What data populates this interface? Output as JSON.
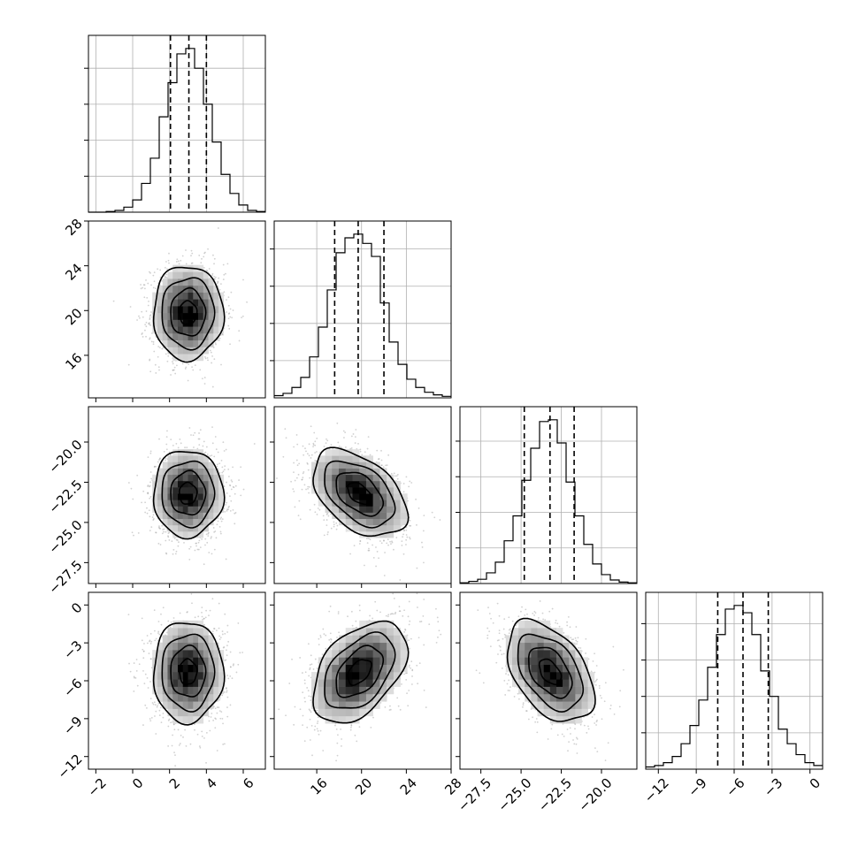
{
  "chart_data": {
    "type": "corner",
    "description_kind": "corner plot of 4 parameters: 1D marginal histograms on the diagonal with dashed quantile lines, 2D density histograms with contours and scatter points below the diagonal",
    "grid": true,
    "parameters": [
      {
        "id": "p1",
        "label": "",
        "range": [
          -2.4,
          7.2
        ],
        "ticks": [
          -2,
          0,
          2,
          4,
          6
        ],
        "tick_labels": [
          "−2",
          "0",
          "2",
          "4",
          "6"
        ],
        "mean": 3.0,
        "sd": 0.95,
        "quantiles_dashed": [
          2.05,
          3.05,
          4.0
        ]
      },
      {
        "id": "p2",
        "label": "",
        "range": [
          12.2,
          28.0
        ],
        "ticks": [
          16,
          20,
          24,
          28
        ],
        "tick_labels": [
          "16",
          "20",
          "24",
          "28"
        ],
        "mean": 19.8,
        "sd": 2.1,
        "quantiles_dashed": [
          17.6,
          19.7,
          22.0
        ]
      },
      {
        "id": "p3",
        "label": "",
        "range": [
          -28.8,
          -17.8
        ],
        "ticks": [
          -27.5,
          -25.0,
          -22.5,
          -20.0
        ],
        "tick_labels": [
          "−27.5",
          "−25.0",
          "−22.5",
          "−20.0"
        ],
        "mean": -23.2,
        "sd": 1.35,
        "quantiles_dashed": [
          -24.8,
          -23.2,
          -21.7
        ]
      },
      {
        "id": "p4",
        "label": "",
        "range": [
          -13.0,
          1.0
        ],
        "ticks": [
          -12,
          -9,
          -6,
          -3,
          0
        ],
        "tick_labels": [
          "−12",
          "−9",
          "−6",
          "−3",
          "0"
        ],
        "mean": -5.3,
        "sd": 2.0,
        "quantiles_dashed": [
          -7.3,
          -5.3,
          -3.3
        ]
      }
    ],
    "marginal_histograms": [
      {
        "parameter": "p1",
        "bin_edges": [
          -2.4,
          -1.92,
          -1.44,
          -0.96,
          -0.48,
          0.0,
          0.48,
          0.96,
          1.44,
          1.92,
          2.4,
          2.88,
          3.36,
          3.84,
          4.32,
          4.8,
          5.28,
          5.76,
          6.24,
          6.72,
          7.2
        ],
        "counts": [
          0,
          0,
          2,
          5,
          14,
          34,
          80,
          150,
          265,
          360,
          440,
          455,
          400,
          300,
          195,
          105,
          52,
          20,
          5,
          2
        ]
      },
      {
        "parameter": "p2",
        "bin_edges": [
          12.2,
          12.99,
          13.78,
          14.57,
          15.36,
          16.15,
          16.94,
          17.73,
          18.52,
          19.31,
          20.1,
          20.89,
          21.68,
          22.47,
          23.26,
          24.05,
          24.84,
          25.63,
          26.42,
          27.21,
          28.0
        ],
        "counts": [
          6,
          12,
          28,
          55,
          110,
          190,
          290,
          390,
          430,
          440,
          415,
          380,
          255,
          150,
          90,
          50,
          28,
          15,
          8,
          4
        ]
      },
      {
        "parameter": "p3",
        "bin_edges": [
          -28.8,
          -28.25,
          -27.7,
          -27.15,
          -26.6,
          -26.05,
          -25.5,
          -24.95,
          -24.4,
          -23.85,
          -23.3,
          -22.75,
          -22.2,
          -21.65,
          -21.1,
          -20.55,
          -20.0,
          -19.45,
          -18.9,
          -18.35,
          -17.8
        ],
        "counts": [
          2,
          6,
          12,
          30,
          60,
          120,
          190,
          290,
          380,
          455,
          460,
          395,
          285,
          190,
          110,
          55,
          25,
          10,
          4,
          2
        ]
      },
      {
        "parameter": "p4",
        "bin_edges": [
          -13.0,
          -12.3,
          -11.6,
          -10.9,
          -10.2,
          -9.5,
          -8.8,
          -8.1,
          -7.4,
          -6.7,
          -6.0,
          -5.3,
          -4.6,
          -3.9,
          -3.2,
          -2.5,
          -1.8,
          -1.1,
          -0.4,
          0.3,
          1.0
        ],
        "counts": [
          6,
          10,
          18,
          35,
          70,
          120,
          190,
          280,
          370,
          440,
          450,
          430,
          370,
          270,
          200,
          110,
          70,
          40,
          18,
          10
        ]
      }
    ],
    "joint_distributions": [
      {
        "x": "p1",
        "y": "p2",
        "correlation": 0.0
      },
      {
        "x": "p1",
        "y": "p3",
        "correlation": 0.0
      },
      {
        "x": "p2",
        "y": "p3",
        "correlation": -0.45
      },
      {
        "x": "p1",
        "y": "p4",
        "correlation": 0.0
      },
      {
        "x": "p2",
        "y": "p4",
        "correlation": 0.45
      },
      {
        "x": "p3",
        "y": "p4",
        "correlation": -0.45
      }
    ],
    "contour_levels_sigma": [
      0.5,
      1.0,
      1.5,
      2.0
    ]
  }
}
